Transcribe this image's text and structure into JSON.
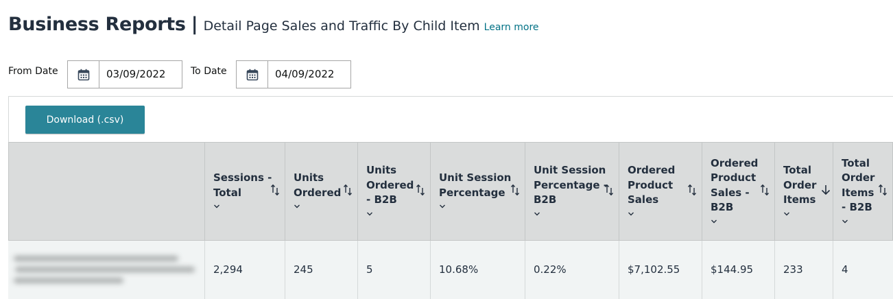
{
  "header": {
    "title": "Business Reports",
    "separator": "|",
    "subtitle": "Detail Page Sales and Traffic By Child Item",
    "learn_more": "Learn more"
  },
  "filters": {
    "from_label": "From Date",
    "from_value": "03/09/2022",
    "to_label": "To Date",
    "to_value": "04/09/2022",
    "icon": "calendar-icon"
  },
  "toolbar": {
    "download_label": "Download (.csv)"
  },
  "table": {
    "columns": [
      {
        "lines": [
          ""
        ],
        "sort": "none"
      },
      {
        "lines": [
          "Sessions -",
          "Total"
        ],
        "sort": "updown"
      },
      {
        "lines": [
          "Units",
          "Ordered"
        ],
        "sort": "updown"
      },
      {
        "lines": [
          "Units",
          "Ordered",
          "- B2B"
        ],
        "sort": "updown"
      },
      {
        "lines": [
          "Unit Session",
          "Percentage"
        ],
        "sort": "updown"
      },
      {
        "lines": [
          "Unit Session",
          "Percentage -",
          "B2B"
        ],
        "sort": "updown"
      },
      {
        "lines": [
          "Ordered",
          "Product",
          "Sales"
        ],
        "sort": "updown"
      },
      {
        "lines": [
          "Ordered",
          "Product",
          "Sales -",
          "B2B"
        ],
        "sort": "updown"
      },
      {
        "lines": [
          "Total",
          "Order",
          "Items"
        ],
        "sort": "down"
      },
      {
        "lines": [
          "Total",
          "Order",
          "Items",
          "- B2B"
        ],
        "sort": "updown"
      }
    ],
    "rows": [
      [
        "",
        "2,294",
        "245",
        "5",
        "10.68%",
        "0.22%",
        "$7,102.55",
        "$144.95",
        "233",
        "4"
      ]
    ]
  },
  "colors": {
    "button": "#2a8598",
    "header_bg": "#dadcdc",
    "row_bg": "#f1f4f4",
    "link": "#007185",
    "title": "#232f3e"
  }
}
